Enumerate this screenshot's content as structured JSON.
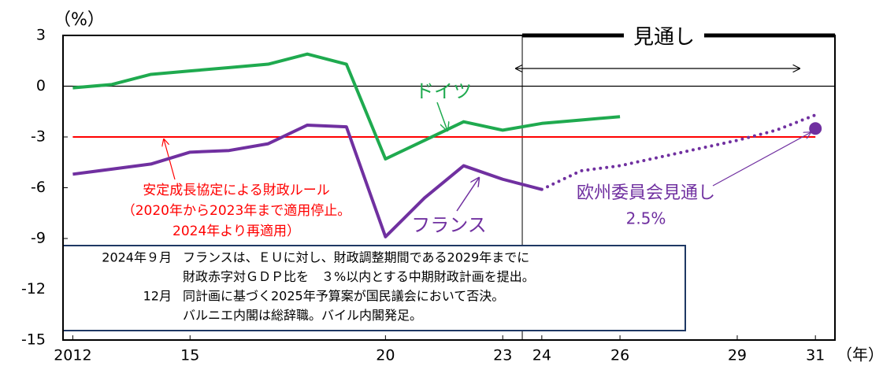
{
  "chart_data": {
    "type": "line",
    "y_label": "（%）",
    "x_label": "（年）",
    "xlim": [
      2011.75,
      2031.5
    ],
    "xticks": [
      {
        "value": 2012,
        "label": "2012"
      },
      {
        "value": 2015,
        "label": "15"
      },
      {
        "value": 2020,
        "label": "20"
      },
      {
        "value": 2023,
        "label": "23"
      },
      {
        "value": 2024,
        "label": "24"
      },
      {
        "value": 2026,
        "label": "26"
      },
      {
        "value": 2029,
        "label": "29"
      },
      {
        "value": 2031,
        "label": "31"
      }
    ],
    "ylim": [
      -15,
      3
    ],
    "yticks": [
      3,
      0,
      -3,
      -6,
      -9,
      -12,
      -15
    ],
    "x": [
      2012,
      2013,
      2014,
      2015,
      2016,
      2017,
      2018,
      2019,
      2020,
      2021,
      2022,
      2023,
      2024,
      2025,
      2026,
      2027,
      2028,
      2029,
      2030,
      2031
    ],
    "series": [
      {
        "name": "ドイツ",
        "color": "#1faa4f",
        "style": "solid",
        "values": [
          -0.1,
          0.1,
          0.7,
          0.9,
          1.1,
          1.3,
          1.9,
          1.3,
          -4.3,
          -3.2,
          -2.1,
          -2.6,
          -2.2,
          -2.0,
          -1.8,
          null,
          null,
          null,
          null,
          null
        ]
      },
      {
        "name": "フランス",
        "color": "#7030a0",
        "style": "solid",
        "values": [
          -5.2,
          -4.9,
          -4.6,
          -3.9,
          -3.8,
          -3.4,
          -2.3,
          -2.4,
          -8.9,
          -6.6,
          -4.7,
          -5.5,
          -6.1,
          null,
          null,
          null,
          null,
          null,
          null,
          null
        ]
      },
      {
        "color": "#7030a0",
        "style": "dotted",
        "values": [
          null,
          null,
          null,
          null,
          null,
          null,
          null,
          null,
          null,
          null,
          null,
          null,
          -6.1,
          -5.0,
          -4.7,
          -4.2,
          -3.7,
          -3.2,
          -2.6,
          -1.7
        ]
      }
    ],
    "point": {
      "x": 2031,
      "value": -2.5,
      "color": "#7030a0",
      "label": "欧州委員会見通し",
      "sublabel": "2.5%"
    },
    "rule": {
      "value": -3,
      "from": 2012,
      "to": 2031,
      "color": "#ff0000",
      "label_lines": [
        "安定成長協定による財政ルール",
        "（2020年から2023年まで適用停止。",
        "2024年より再適用）"
      ]
    },
    "zero_line": 0,
    "forecast": {
      "from": 2023.5,
      "label": "見通し"
    },
    "note": [
      {
        "date": "2024年９月",
        "text": "フランスは、ＥＵに対し、財政調整期間である2029年までに"
      },
      {
        "text": "財政赤字対ＧＤＰ比を　３%以内とする中期財政計画を提出。"
      },
      {
        "date": "12月",
        "text": "同計画に基づく2025年予算案が国民議会において否決。"
      },
      {
        "text": "バルニエ内閣は総辞職。バイル内閣発足。"
      }
    ]
  }
}
